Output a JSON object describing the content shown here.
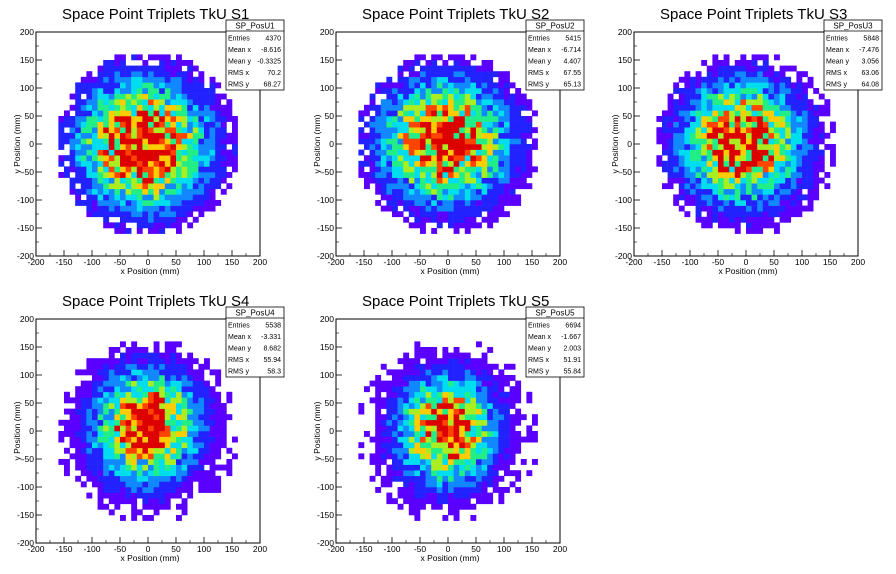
{
  "chart_data": [
    {
      "type": "heatmap",
      "title": "Space Point Triplets TkU S1",
      "xlabel": "x Position (mm)",
      "ylabel": "y Position (mm)",
      "xlim": [
        -200,
        200
      ],
      "ylim": [
        -200,
        200
      ],
      "x_ticks": [
        "-200",
        "-150",
        "-100",
        "-50",
        "0",
        "50",
        "100",
        "150",
        "200"
      ],
      "y_ticks": [
        "-200",
        "-150",
        "-100",
        "-50",
        "0",
        "50",
        "100",
        "150",
        "200"
      ],
      "stats": {
        "name": "SP_PosU1",
        "rows": [
          {
            "label": "Entries",
            "value": "4370"
          },
          {
            "label": "Mean x",
            "value": "-8.616"
          },
          {
            "label": "Mean y",
            "value": "-0.3325"
          },
          {
            "label": "RMS x",
            "value": "70.2"
          },
          {
            "label": "RMS y",
            "value": "68.27"
          }
        ]
      },
      "distribution": {
        "radius_mm": 165,
        "mean_x": -8.616,
        "mean_y": -0.3325,
        "rms_x": 70.2,
        "rms_y": 68.27,
        "bin_mm": 10,
        "seed": 11
      }
    },
    {
      "type": "heatmap",
      "title": "Space Point Triplets TkU S2",
      "xlabel": "x Position (mm)",
      "ylabel": "y Position (mm)",
      "xlim": [
        -200,
        200
      ],
      "ylim": [
        -200,
        200
      ],
      "x_ticks": [
        "-200",
        "-150",
        "-100",
        "-50",
        "0",
        "50",
        "100",
        "150",
        "200"
      ],
      "y_ticks": [
        "-200",
        "-150",
        "-100",
        "-50",
        "0",
        "50",
        "100",
        "150",
        "200"
      ],
      "stats": {
        "name": "SP_PosU2",
        "rows": [
          {
            "label": "Entries",
            "value": "5415"
          },
          {
            "label": "Mean x",
            "value": "-6.714"
          },
          {
            "label": "Mean y",
            "value": "4.407"
          },
          {
            "label": "RMS x",
            "value": "67.55"
          },
          {
            "label": "RMS y",
            "value": "65.13"
          }
        ]
      },
      "distribution": {
        "radius_mm": 165,
        "mean_x": -6.714,
        "mean_y": 4.407,
        "rms_x": 67.55,
        "rms_y": 65.13,
        "bin_mm": 10,
        "seed": 23
      }
    },
    {
      "type": "heatmap",
      "title": "Space Point Triplets TkU S3",
      "xlabel": "x Position (mm)",
      "ylabel": "y Position (mm)",
      "xlim": [
        -200,
        200
      ],
      "ylim": [
        -200,
        200
      ],
      "x_ticks": [
        "-200",
        "-150",
        "-100",
        "-50",
        "0",
        "50",
        "100",
        "150",
        "200"
      ],
      "y_ticks": [
        "-200",
        "-150",
        "-100",
        "-50",
        "0",
        "50",
        "100",
        "150",
        "200"
      ],
      "stats": {
        "name": "SP_PosU3",
        "rows": [
          {
            "label": "Entries",
            "value": "5848"
          },
          {
            "label": "Mean x",
            "value": "-7.476"
          },
          {
            "label": "Mean y",
            "value": "3.056"
          },
          {
            "label": "RMS x",
            "value": "63.06"
          },
          {
            "label": "RMS y",
            "value": "64.08"
          }
        ]
      },
      "distribution": {
        "radius_mm": 165,
        "mean_x": -7.476,
        "mean_y": 3.056,
        "rms_x": 63.06,
        "rms_y": 64.08,
        "bin_mm": 10,
        "seed": 37
      }
    },
    {
      "type": "heatmap",
      "title": "Space Point Triplets TkU S4",
      "xlabel": "x Position (mm)",
      "ylabel": "y Position (mm)",
      "xlim": [
        -200,
        200
      ],
      "ylim": [
        -200,
        200
      ],
      "x_ticks": [
        "-200",
        "-150",
        "-100",
        "-50",
        "0",
        "50",
        "100",
        "150",
        "200"
      ],
      "y_ticks": [
        "-200",
        "-150",
        "-100",
        "-50",
        "0",
        "50",
        "100",
        "150",
        "200"
      ],
      "stats": {
        "name": "SP_PosU4",
        "rows": [
          {
            "label": "Entries",
            "value": "5538"
          },
          {
            "label": "Mean x",
            "value": "-3.331"
          },
          {
            "label": "Mean y",
            "value": "8.682"
          },
          {
            "label": "RMS x",
            "value": "55.94"
          },
          {
            "label": "RMS y",
            "value": "58.3"
          }
        ]
      },
      "distribution": {
        "radius_mm": 165,
        "mean_x": -3.331,
        "mean_y": 8.682,
        "rms_x": 55.94,
        "rms_y": 58.3,
        "bin_mm": 10,
        "seed": 41
      }
    },
    {
      "type": "heatmap",
      "title": "Space Point Triplets TkU S5",
      "xlabel": "x Position (mm)",
      "ylabel": "y Position (mm)",
      "xlim": [
        -200,
        200
      ],
      "ylim": [
        -200,
        200
      ],
      "x_ticks": [
        "-200",
        "-150",
        "-100",
        "-50",
        "0",
        "50",
        "100",
        "150",
        "200"
      ],
      "y_ticks": [
        "-200",
        "-150",
        "-100",
        "-50",
        "0",
        "50",
        "100",
        "150",
        "200"
      ],
      "stats": {
        "name": "SP_PosU5",
        "rows": [
          {
            "label": "Entries",
            "value": "6694"
          },
          {
            "label": "Mean x",
            "value": "-1.667"
          },
          {
            "label": "Mean y",
            "value": "2.003"
          },
          {
            "label": "RMS x",
            "value": "51.91"
          },
          {
            "label": "RMS y",
            "value": "55.84"
          }
        ]
      },
      "distribution": {
        "radius_mm": 165,
        "mean_x": -1.667,
        "mean_y": 2.003,
        "rms_x": 51.91,
        "rms_y": 55.84,
        "bin_mm": 10,
        "seed": 53
      }
    }
  ],
  "colors": {
    "palette": [
      "#5a00ff",
      "#2222ff",
      "#1188ff",
      "#00ddee",
      "#22ee88",
      "#aaee22",
      "#ffcc00",
      "#ff4400",
      "#dd0000"
    ],
    "frame": "#000000",
    "background": "#ffffff"
  }
}
